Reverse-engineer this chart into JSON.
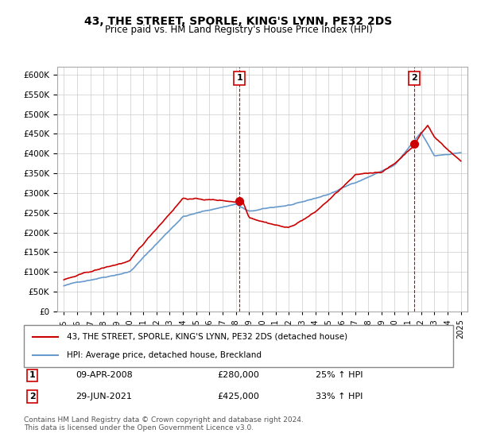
{
  "title": "43, THE STREET, SPORLE, KING'S LYNN, PE32 2DS",
  "subtitle": "Price paid vs. HM Land Registry's House Price Index (HPI)",
  "red_label": "43, THE STREET, SPORLE, KING'S LYNN, PE32 2DS (detached house)",
  "blue_label": "HPI: Average price, detached house, Breckland",
  "annotation1_label": "1",
  "annotation1_date": "09-APR-2008",
  "annotation1_price": "£280,000",
  "annotation1_pct": "25% ↑ HPI",
  "annotation2_label": "2",
  "annotation2_date": "29-JUN-2021",
  "annotation2_price": "£425,000",
  "annotation2_pct": "33% ↑ HPI",
  "footer": "Contains HM Land Registry data © Crown copyright and database right 2024.\nThis data is licensed under the Open Government Licence v3.0.",
  "red_color": "#cc0000",
  "blue_color": "#6699cc",
  "vline_color": "#cc0000",
  "ylim": [
    0,
    620000
  ],
  "yticks": [
    0,
    50000,
    100000,
    150000,
    200000,
    250000,
    300000,
    350000,
    400000,
    450000,
    500000,
    550000,
    600000
  ],
  "sale1_x": 2008.27,
  "sale1_y": 280000,
  "sale2_x": 2021.49,
  "sale2_y": 425000,
  "xlim_start": 1994.5,
  "xlim_end": 2025.5
}
